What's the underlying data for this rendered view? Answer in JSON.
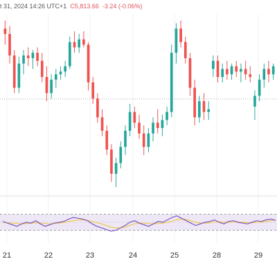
{
  "header": {
    "datetime": "t 31, 2024 14:26 UTC+1",
    "close_text": "C5,813.66",
    "change_text": "-3.24 (-0.06%)",
    "partial_value": "5,813.66"
  },
  "colors": {
    "up": "#26a69a",
    "down": "#ef5350",
    "rsi_line": "#7e57c2",
    "rsi_ma": "#f2c94c",
    "rsi_band": "#ede7f6"
  },
  "chart_data": [
    {
      "type": "candlestick",
      "title": "",
      "x_tick_labels": [
        "21",
        "22",
        "23",
        "24",
        "25",
        "28",
        "29"
      ],
      "reference_level": 5813.66,
      "candles": [
        {
          "o": 5866,
          "h": 5872,
          "l": 5854,
          "c": 5862
        },
        {
          "o": 5862,
          "h": 5868,
          "l": 5840,
          "c": 5846
        },
        {
          "o": 5846,
          "h": 5850,
          "l": 5818,
          "c": 5822
        },
        {
          "o": 5822,
          "h": 5845,
          "l": 5818,
          "c": 5840
        },
        {
          "o": 5840,
          "h": 5850,
          "l": 5832,
          "c": 5846
        },
        {
          "o": 5846,
          "h": 5852,
          "l": 5838,
          "c": 5844
        },
        {
          "o": 5844,
          "h": 5850,
          "l": 5836,
          "c": 5848
        },
        {
          "o": 5848,
          "h": 5852,
          "l": 5838,
          "c": 5842
        },
        {
          "o": 5842,
          "h": 5848,
          "l": 5826,
          "c": 5830
        },
        {
          "o": 5830,
          "h": 5838,
          "l": 5812,
          "c": 5818
        },
        {
          "o": 5818,
          "h": 5832,
          "l": 5814,
          "c": 5828
        },
        {
          "o": 5828,
          "h": 5836,
          "l": 5822,
          "c": 5832
        },
        {
          "o": 5832,
          "h": 5838,
          "l": 5828,
          "c": 5834
        },
        {
          "o": 5834,
          "h": 5842,
          "l": 5830,
          "c": 5838
        },
        {
          "o": 5838,
          "h": 5860,
          "l": 5836,
          "c": 5856
        },
        {
          "o": 5856,
          "h": 5864,
          "l": 5848,
          "c": 5852
        },
        {
          "o": 5852,
          "h": 5862,
          "l": 5848,
          "c": 5858
        },
        {
          "o": 5858,
          "h": 5864,
          "l": 5852,
          "c": 5854
        },
        {
          "o": 5854,
          "h": 5856,
          "l": 5820,
          "c": 5826
        },
        {
          "o": 5826,
          "h": 5830,
          "l": 5810,
          "c": 5814
        },
        {
          "o": 5814,
          "h": 5818,
          "l": 5796,
          "c": 5800
        },
        {
          "o": 5800,
          "h": 5806,
          "l": 5786,
          "c": 5790
        },
        {
          "o": 5790,
          "h": 5794,
          "l": 5772,
          "c": 5776
        },
        {
          "o": 5776,
          "h": 5780,
          "l": 5752,
          "c": 5758
        },
        {
          "o": 5758,
          "h": 5770,
          "l": 5748,
          "c": 5766
        },
        {
          "o": 5766,
          "h": 5782,
          "l": 5762,
          "c": 5778
        },
        {
          "o": 5778,
          "h": 5794,
          "l": 5772,
          "c": 5790
        },
        {
          "o": 5790,
          "h": 5810,
          "l": 5786,
          "c": 5804
        },
        {
          "o": 5804,
          "h": 5808,
          "l": 5792,
          "c": 5796
        },
        {
          "o": 5796,
          "h": 5802,
          "l": 5784,
          "c": 5788
        },
        {
          "o": 5788,
          "h": 5794,
          "l": 5772,
          "c": 5778
        },
        {
          "o": 5778,
          "h": 5792,
          "l": 5774,
          "c": 5788
        },
        {
          "o": 5788,
          "h": 5800,
          "l": 5782,
          "c": 5796
        },
        {
          "o": 5796,
          "h": 5806,
          "l": 5788,
          "c": 5792
        },
        {
          "o": 5792,
          "h": 5802,
          "l": 5786,
          "c": 5798
        },
        {
          "o": 5798,
          "h": 5808,
          "l": 5794,
          "c": 5804
        },
        {
          "o": 5804,
          "h": 5854,
          "l": 5800,
          "c": 5848
        },
        {
          "o": 5848,
          "h": 5870,
          "l": 5840,
          "c": 5866
        },
        {
          "o": 5866,
          "h": 5872,
          "l": 5852,
          "c": 5856
        },
        {
          "o": 5856,
          "h": 5860,
          "l": 5840,
          "c": 5844
        },
        {
          "o": 5844,
          "h": 5848,
          "l": 5816,
          "c": 5822
        },
        {
          "o": 5822,
          "h": 5828,
          "l": 5794,
          "c": 5800
        },
        {
          "o": 5800,
          "h": 5816,
          "l": 5796,
          "c": 5812
        },
        {
          "o": 5812,
          "h": 5818,
          "l": 5798,
          "c": 5804
        },
        {
          "o": 5804,
          "h": 5812,
          "l": 5798,
          "c": 5806
        },
        {
          "o": 5836,
          "h": 5846,
          "l": 5830,
          "c": 5842
        },
        {
          "o": 5842,
          "h": 5846,
          "l": 5826,
          "c": 5830
        },
        {
          "o": 5830,
          "h": 5840,
          "l": 5826,
          "c": 5836
        },
        {
          "o": 5836,
          "h": 5842,
          "l": 5828,
          "c": 5832
        },
        {
          "o": 5832,
          "h": 5840,
          "l": 5828,
          "c": 5838
        },
        {
          "o": 5838,
          "h": 5842,
          "l": 5830,
          "c": 5834
        },
        {
          "o": 5834,
          "h": 5840,
          "l": 5826,
          "c": 5836
        },
        {
          "o": 5836,
          "h": 5842,
          "l": 5828,
          "c": 5832
        },
        {
          "o": 5832,
          "h": 5838,
          "l": 5826,
          "c": 5830
        },
        {
          "o": 5808,
          "h": 5820,
          "l": 5798,
          "c": 5816
        },
        {
          "o": 5816,
          "h": 5832,
          "l": 5812,
          "c": 5828
        },
        {
          "o": 5828,
          "h": 5840,
          "l": 5822,
          "c": 5836
        },
        {
          "o": 5836,
          "h": 5842,
          "l": 5826,
          "c": 5832
        },
        {
          "o": 5832,
          "h": 5840,
          "l": 5828,
          "c": 5838
        }
      ]
    },
    {
      "type": "line",
      "title": "",
      "ylim": [
        0,
        100
      ],
      "bands": [
        30,
        70
      ],
      "series": [
        {
          "values": [
            52,
            48,
            44,
            40,
            46,
            50,
            48,
            54,
            46,
            40,
            44,
            48,
            50,
            52,
            58,
            62,
            60,
            58,
            54,
            46,
            40,
            36,
            32,
            28,
            30,
            36,
            42,
            50,
            54,
            48,
            44,
            40,
            46,
            52,
            50,
            56,
            62,
            66,
            60,
            54,
            48,
            42,
            46,
            50,
            52,
            56,
            50,
            46,
            52,
            54,
            50,
            48,
            46,
            50,
            54,
            52,
            56,
            58,
            55
          ]
        },
        {
          "values": [
            50,
            49,
            48,
            47,
            46,
            47,
            48,
            49,
            48,
            47,
            46,
            47,
            48,
            50,
            52,
            54,
            56,
            56,
            55,
            52,
            49,
            46,
            42,
            38,
            36,
            36,
            38,
            42,
            46,
            48,
            48,
            47,
            46,
            47,
            48,
            50,
            53,
            56,
            58,
            57,
            54,
            50,
            48,
            48,
            49,
            51,
            51,
            50,
            50,
            51,
            51,
            50,
            49,
            49,
            50,
            51,
            52,
            54,
            55
          ]
        }
      ]
    }
  ]
}
